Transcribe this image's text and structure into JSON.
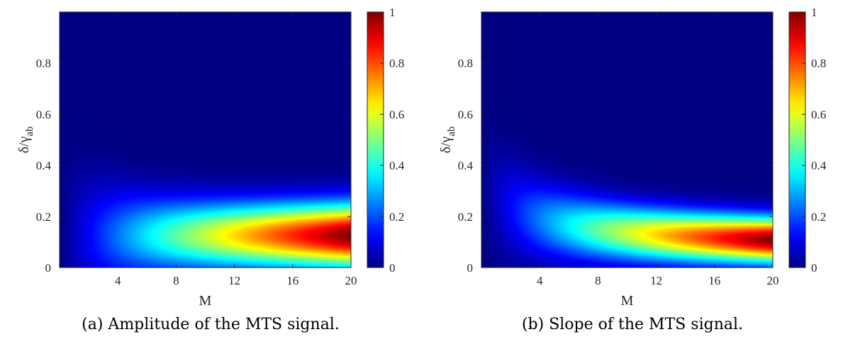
{
  "chart_data": [
    {
      "type": "heatmap",
      "caption": "(a) Amplitude of the MTS signal.",
      "xlabel": "M",
      "ylabel_main": "δ/γ",
      "ylabel_sub": "ab",
      "xlim": [
        0,
        20
      ],
      "ylim": [
        0,
        1
      ],
      "xticks": [
        "4",
        "8",
        "12",
        "16",
        "20"
      ],
      "xtick_values": [
        4,
        8,
        12,
        16,
        20
      ],
      "yticks": [
        "0",
        "0.2",
        "0.4",
        "0.6",
        "0.8"
      ],
      "ytick_values": [
        0,
        0.2,
        0.4,
        0.6,
        0.8
      ],
      "colorbar": {
        "ticks": [
          "0",
          "0.2",
          "0.4",
          "0.6",
          "0.8",
          "1"
        ],
        "values": [
          0,
          0.2,
          0.4,
          0.6,
          0.8,
          1
        ],
        "colormap": "jet"
      },
      "zlim": [
        0,
        1
      ],
      "description_of_peak": {
        "M": 20,
        "delta_over_gamma": 0.13,
        "value": 1.0
      }
    },
    {
      "type": "heatmap",
      "caption": "(b) Slope of the MTS signal.",
      "xlabel": "M",
      "ylabel_main": "δ/γ",
      "ylabel_sub": "ab",
      "xlim": [
        0,
        20
      ],
      "ylim": [
        0,
        1
      ],
      "xticks": [
        "4",
        "8",
        "12",
        "16",
        "20"
      ],
      "xtick_values": [
        4,
        8,
        12,
        16,
        20
      ],
      "yticks": [
        "0",
        "0.2",
        "0.4",
        "0.6",
        "0.8"
      ],
      "ytick_values": [
        0,
        0.2,
        0.4,
        0.6,
        0.8
      ],
      "colorbar": {
        "ticks": [
          "0",
          "0.2",
          "0.4",
          "0.6",
          "0.8",
          "1"
        ],
        "values": [
          0,
          0.2,
          0.4,
          0.6,
          0.8,
          1
        ],
        "colormap": "jet"
      },
      "zlim": [
        0,
        1
      ],
      "description_of_peak": {
        "M": 20,
        "delta_over_gamma": 0.11,
        "value": 1.0
      }
    }
  ]
}
